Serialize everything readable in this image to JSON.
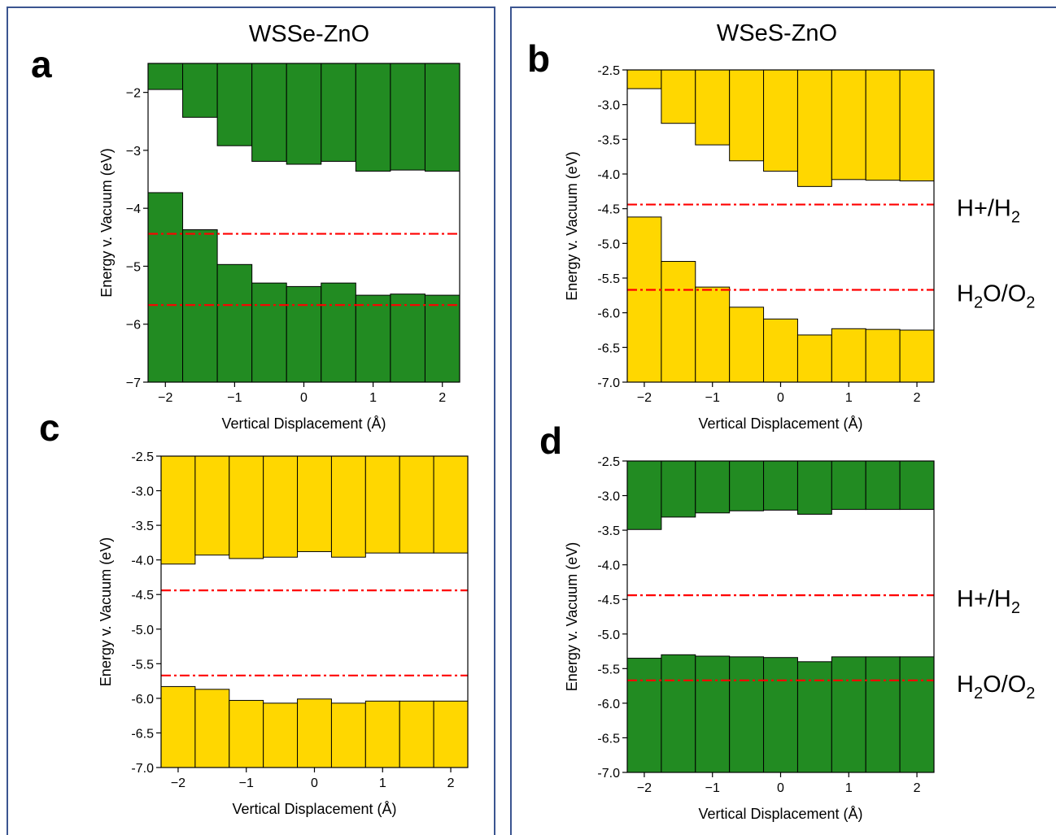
{
  "figure": {
    "border_color": "#3b5590",
    "ref_color": "#ff0000"
  },
  "chart_data": [
    {
      "id": "a",
      "letter": "a",
      "type": "bar",
      "title": "WSSe-ZnO",
      "xlabel": "Vertical Displacement (Å)",
      "ylabel": "Energy v. Vacuum (eV)",
      "xlim": [
        -2.25,
        2.25
      ],
      "ylim": [
        -7,
        -1.5
      ],
      "xticks": [
        -2,
        -1,
        0,
        1,
        2
      ],
      "xtick_labels": [
        "−2",
        "−1",
        "0",
        "1",
        "2"
      ],
      "yticks": [
        -7,
        -6,
        -5,
        -4,
        -3,
        -2
      ],
      "ytick_labels": [
        "−7",
        "−6",
        "−5",
        "−4",
        "−3",
        "−2"
      ],
      "color": "#228b22",
      "x": [
        -2.0,
        -1.5,
        -1.0,
        -0.5,
        0.0,
        0.5,
        1.0,
        1.5,
        2.0
      ],
      "cbm": [
        -1.95,
        -2.43,
        -2.92,
        -3.19,
        -3.24,
        -3.19,
        -3.36,
        -3.34,
        -3.36
      ],
      "vbm": [
        -3.73,
        -4.37,
        -4.97,
        -5.29,
        -5.35,
        -5.29,
        -5.5,
        -5.48,
        -5.5
      ],
      "reference_lines": [
        {
          "name": "H+/H2",
          "value": -4.44
        },
        {
          "name": "H2O/O2",
          "value": -5.67
        }
      ],
      "show_ref_labels": false
    },
    {
      "id": "b",
      "letter": "b",
      "type": "bar",
      "title": "WSeS-ZnO",
      "xlabel": "Vertical Displacement (Å)",
      "ylabel": "Energy v. Vacuum (eV)",
      "xlim": [
        -2.25,
        2.25
      ],
      "ylim": [
        -7.0,
        -2.5
      ],
      "xticks": [
        -2,
        -1,
        0,
        1,
        2
      ],
      "xtick_labels": [
        "−2",
        "−1",
        "0",
        "1",
        "2"
      ],
      "yticks": [
        -7.0,
        -6.5,
        -6.0,
        -5.5,
        -5.0,
        -4.5,
        -4.0,
        -3.5,
        -3.0,
        -2.5
      ],
      "ytick_labels": [
        "-7.0",
        "-6.5",
        "-6.0",
        "-5.5",
        "-5.0",
        "-4.5",
        "-4.0",
        "-3.5",
        "-3.0",
        "-2.5"
      ],
      "color": "#ffd700",
      "x": [
        -2.0,
        -1.5,
        -1.0,
        -0.5,
        0.0,
        0.5,
        1.0,
        1.5,
        2.0
      ],
      "cbm": [
        -2.77,
        -3.27,
        -3.58,
        -3.81,
        -3.96,
        -4.18,
        -4.08,
        -4.09,
        -4.1
      ],
      "vbm": [
        -4.62,
        -5.26,
        -5.63,
        -5.92,
        -6.09,
        -6.32,
        -6.23,
        -6.24,
        -6.25
      ],
      "reference_lines": [
        {
          "name": "H+/H2",
          "value": -4.44
        },
        {
          "name": "H2O/O2",
          "value": -5.67
        }
      ],
      "show_ref_labels": true
    },
    {
      "id": "c",
      "letter": "c",
      "type": "bar",
      "title": "",
      "xlabel": "Vertical Displacement (Å)",
      "ylabel": "Energy v. Vacuum (eV)",
      "xlim": [
        -2.25,
        2.25
      ],
      "ylim": [
        -7.0,
        -2.5
      ],
      "xticks": [
        -2,
        -1,
        0,
        1,
        2
      ],
      "xtick_labels": [
        "−2",
        "−1",
        "0",
        "1",
        "2"
      ],
      "yticks": [
        -7.0,
        -6.5,
        -6.0,
        -5.5,
        -5.0,
        -4.5,
        -4.0,
        -3.5,
        -3.0,
        -2.5
      ],
      "ytick_labels": [
        "-7.0",
        "-6.5",
        "-6.0",
        "-5.5",
        "-5.0",
        "-4.5",
        "-4.0",
        "-3.5",
        "-3.0",
        "-2.5"
      ],
      "color": "#ffd700",
      "x": [
        -2.0,
        -1.5,
        -1.0,
        -0.5,
        0.0,
        0.5,
        1.0,
        1.5,
        2.0
      ],
      "cbm": [
        -4.06,
        -3.93,
        -3.98,
        -3.96,
        -3.88,
        -3.96,
        -3.9,
        -3.9,
        -3.9
      ],
      "vbm": [
        -5.83,
        -5.87,
        -6.03,
        -6.07,
        -6.01,
        -6.07,
        -6.04,
        -6.04,
        -6.04
      ],
      "reference_lines": [
        {
          "name": "H+/H2",
          "value": -4.44
        },
        {
          "name": "H2O/O2",
          "value": -5.67
        }
      ],
      "show_ref_labels": false
    },
    {
      "id": "d",
      "letter": "d",
      "type": "bar",
      "title": "",
      "xlabel": "Vertical Displacement (Å)",
      "ylabel": "Energy v. Vacuum (eV)",
      "xlim": [
        -2.25,
        2.25
      ],
      "ylim": [
        -7.0,
        -2.5
      ],
      "xticks": [
        -2,
        -1,
        0,
        1,
        2
      ],
      "xtick_labels": [
        "−2",
        "−1",
        "0",
        "1",
        "2"
      ],
      "yticks": [
        -7.0,
        -6.5,
        -6.0,
        -5.5,
        -5.0,
        -4.5,
        -4.0,
        -3.5,
        -3.0,
        -2.5
      ],
      "ytick_labels": [
        "-7.0",
        "-6.5",
        "-6.0",
        "-5.5",
        "-5.0",
        "-4.5",
        "-4.0",
        "-3.5",
        "-3.0",
        "-2.5"
      ],
      "color": "#228b22",
      "x": [
        -2.0,
        -1.5,
        -1.0,
        -0.5,
        0.0,
        0.5,
        1.0,
        1.5,
        2.0
      ],
      "cbm": [
        -3.49,
        -3.31,
        -3.25,
        -3.22,
        -3.21,
        -3.27,
        -3.2,
        -3.2,
        -3.2
      ],
      "vbm": [
        -5.35,
        -5.3,
        -5.32,
        -5.33,
        -5.34,
        -5.4,
        -5.33,
        -5.33,
        -5.33
      ],
      "reference_lines": [
        {
          "name": "H+/H2",
          "value": -4.44
        },
        {
          "name": "H2O/O2",
          "value": -5.67
        }
      ],
      "show_ref_labels": true
    }
  ],
  "ref_labels": {
    "hydrogen": {
      "main": "H+/H",
      "sub": "2"
    },
    "oxygen": {
      "part1": "H",
      "sub1": "2",
      "part2": "O/O",
      "sub2": "2"
    }
  }
}
